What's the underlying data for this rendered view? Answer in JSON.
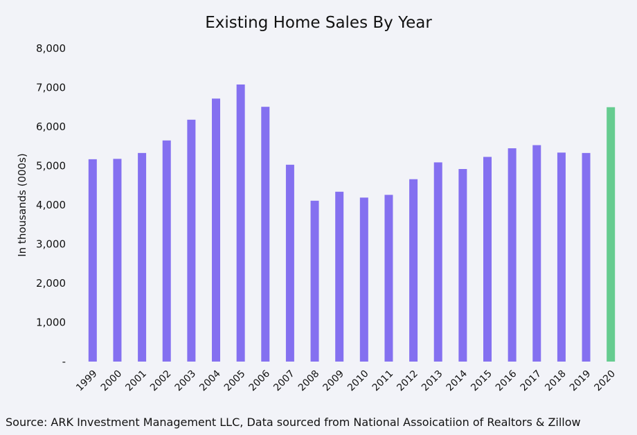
{
  "title": "Existing Home Sales By Year",
  "source": "Source: ARK Investment Management LLC, Data sourced from National Assoicatiion of Realtors & Zillow",
  "colors": {
    "bar": "#8470f0",
    "highlight": "#66cc90",
    "background": "#f2f3f8"
  },
  "chart_data": {
    "type": "bar",
    "title": "Existing Home Sales By Year",
    "xlabel": "",
    "ylabel": "In thousands (000s)",
    "ylim": [
      0,
      8000
    ],
    "yticks": [
      0,
      1000,
      2000,
      3000,
      4000,
      5000,
      6000,
      7000,
      8000
    ],
    "ytick_labels": [
      "-",
      "1,000",
      "2,000",
      "3,000",
      "4,000",
      "5,000",
      "6,000",
      "7,000",
      "8,000"
    ],
    "grid": false,
    "categories": [
      "1999",
      "2000",
      "2001",
      "2002",
      "2003",
      "2004",
      "2005",
      "2006",
      "2007",
      "2008",
      "2009",
      "2010",
      "2011",
      "2012",
      "2013",
      "2014",
      "2015",
      "2016",
      "2017",
      "2018",
      "2019",
      "2020"
    ],
    "values": [
      5170,
      5180,
      5330,
      5650,
      6180,
      6720,
      7080,
      6510,
      5030,
      4110,
      4340,
      4190,
      4260,
      4660,
      5090,
      4920,
      5230,
      5450,
      5530,
      5340,
      5330,
      6500
    ],
    "highlight_categories": [
      "2020"
    ]
  }
}
